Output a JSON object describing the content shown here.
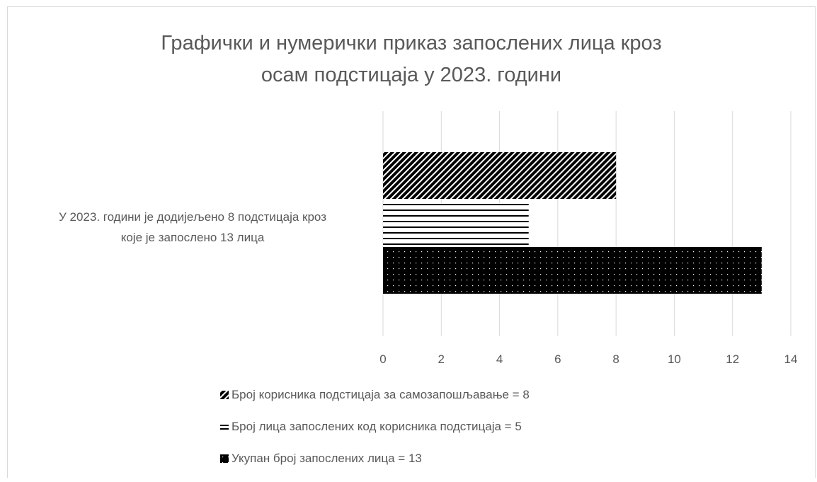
{
  "chart_data": {
    "type": "bar",
    "orientation": "horizontal",
    "title_line1": "Графички и нумерички приказ запослених лица кроз",
    "title_line2": "осам подстицаја у 2023. години",
    "category_label_line1": "У 2023. години је додијељено 8 подстицаја кроз",
    "category_label_line2": "које је запослено 13 лица",
    "categories": [
      "У 2023. години је додијељено 8 подстицаја кроз које је запослено 13 лица"
    ],
    "xlim": [
      0,
      14
    ],
    "xticks": [
      "0",
      "2",
      "4",
      "6",
      "8",
      "10",
      "12",
      "14"
    ],
    "grid": true,
    "legend_position": "bottom",
    "series": [
      {
        "name": "Број корисника подстицаја за самозапошљавање = 8",
        "values": [
          8
        ],
        "pattern": "diagonal"
      },
      {
        "name": "Број лица запослених код корисника подстицаја = 5",
        "values": [
          5
        ],
        "pattern": "horizontal"
      },
      {
        "name": "Укупан број запослених лица = 13",
        "values": [
          13
        ],
        "pattern": "dots"
      }
    ]
  }
}
